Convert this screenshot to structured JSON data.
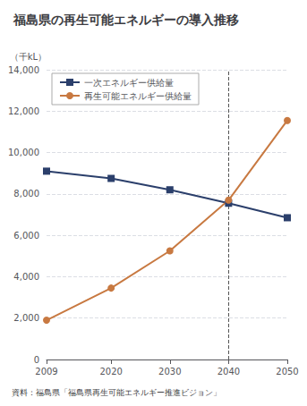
{
  "chart_data": {
    "type": "line",
    "title": "福島県の再生可能エネルギーの導入推移",
    "ylabel": "（千kL）",
    "source": "資料：福島県「福島県再生可能エネルギー推進ビジョン」",
    "x": [
      2009,
      2020,
      2030,
      2040,
      2050
    ],
    "xlim": [
      2009,
      2050
    ],
    "xticks": [
      2009,
      2020,
      2030,
      2040,
      2050
    ],
    "ylim": [
      0,
      14000
    ],
    "yticks": [
      0,
      {
        "value": 2000,
        "label": "2,000"
      },
      {
        "value": 4000,
        "label": "4,000"
      },
      {
        "value": 6000,
        "label": "6,000"
      },
      {
        "value": 8000,
        "label": "8,000"
      },
      {
        "value": 10000,
        "label": "10,000"
      },
      {
        "value": 12000,
        "label": "12,000"
      },
      {
        "value": 14000,
        "label": "14,000"
      }
    ],
    "grid": true,
    "legend": "upper left",
    "series": [
      {
        "name": "一次エネルギー供給量",
        "color": "#2b3f6b",
        "marker": "square",
        "values": [
          9100,
          8750,
          8200,
          7550,
          6850
        ]
      },
      {
        "name": "再生可能エネルギー供給量",
        "color": "#c87941",
        "marker": "circle",
        "values": [
          1900,
          3450,
          5250,
          7700,
          11550
        ]
      }
    ],
    "vlines": [
      {
        "x": 2040,
        "color": "#555555",
        "line_style": "dashed"
      }
    ]
  }
}
